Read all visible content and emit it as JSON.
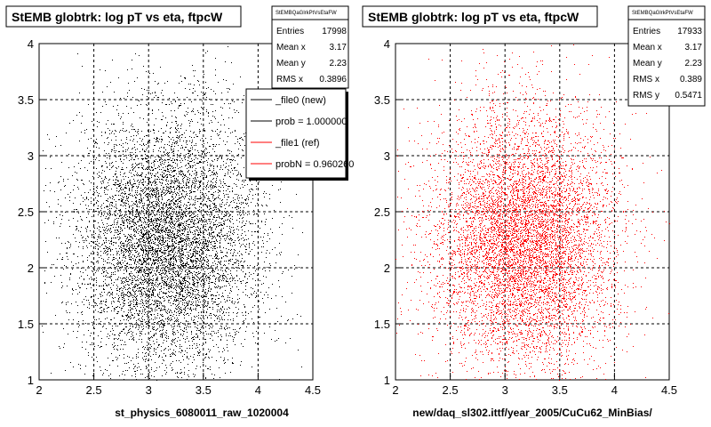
{
  "chart_data": [
    {
      "type": "scatter",
      "title": "StEMB globtrk: log pT vs eta, ftpcW",
      "xlabel": "st_physics_6080011_raw_1020004",
      "ylabel": "",
      "xlim": [
        2,
        4.5
      ],
      "ylim": [
        1,
        4
      ],
      "xticks": [
        "2",
        "2.5",
        "3",
        "3.5",
        "4",
        "4.5"
      ],
      "yticks": [
        "1",
        "1.5",
        "2",
        "2.5",
        "3",
        "3.5",
        "4"
      ],
      "grid": true,
      "color": "#000000",
      "stats": {
        "header": "StEMBQaGlrkPtVsEtaFW",
        "rows": [
          {
            "label": "Entries",
            "value": "17998"
          },
          {
            "label": "Mean x",
            "value": "3.17"
          },
          {
            "label": "Mean y",
            "value": "2.23"
          },
          {
            "label": "RMS x",
            "value": "0.3896"
          }
        ]
      },
      "legend": {
        "placement": "top-right",
        "entries": [
          {
            "label": "_file0 (new)",
            "color": "#000000"
          },
          {
            "label": "prob = 1.000000",
            "color": "#000000"
          },
          {
            "label": "_file1 (ref)",
            "color": "#ff0000"
          },
          {
            "label": "probN = 0.960260",
            "color": "#ff0000"
          }
        ]
      },
      "distribution": {
        "entries": 17998,
        "mean_x": 3.17,
        "mean_y": 2.23,
        "rms_x": 0.3896,
        "rms_y": 0.547
      }
    },
    {
      "type": "scatter",
      "title": "StEMB globtrk: log pT vs eta, ftpcW",
      "xlabel": "new/daq_sl302.ittf/year_2005/CuCu62_MinBias/",
      "ylabel": "",
      "xlim": [
        2,
        4.5
      ],
      "ylim": [
        1,
        4
      ],
      "xticks": [
        "2",
        "2.5",
        "3",
        "3.5",
        "4",
        "4.5"
      ],
      "yticks": [
        "1",
        "1.5",
        "2",
        "2.5",
        "3",
        "3.5",
        "4"
      ],
      "grid": true,
      "color": "#ff0000",
      "stats": {
        "header": "StEMBQaGlrkPtVsEtaFW",
        "rows": [
          {
            "label": "Entries",
            "value": "17933"
          },
          {
            "label": "Mean x",
            "value": "3.17"
          },
          {
            "label": "Mean y",
            "value": "2.23"
          },
          {
            "label": "RMS x",
            "value": "0.389"
          },
          {
            "label": "RMS y",
            "value": "0.5471"
          }
        ]
      },
      "distribution": {
        "entries": 17933,
        "mean_x": 3.17,
        "mean_y": 2.23,
        "rms_x": 0.389,
        "rms_y": 0.5471
      }
    }
  ]
}
